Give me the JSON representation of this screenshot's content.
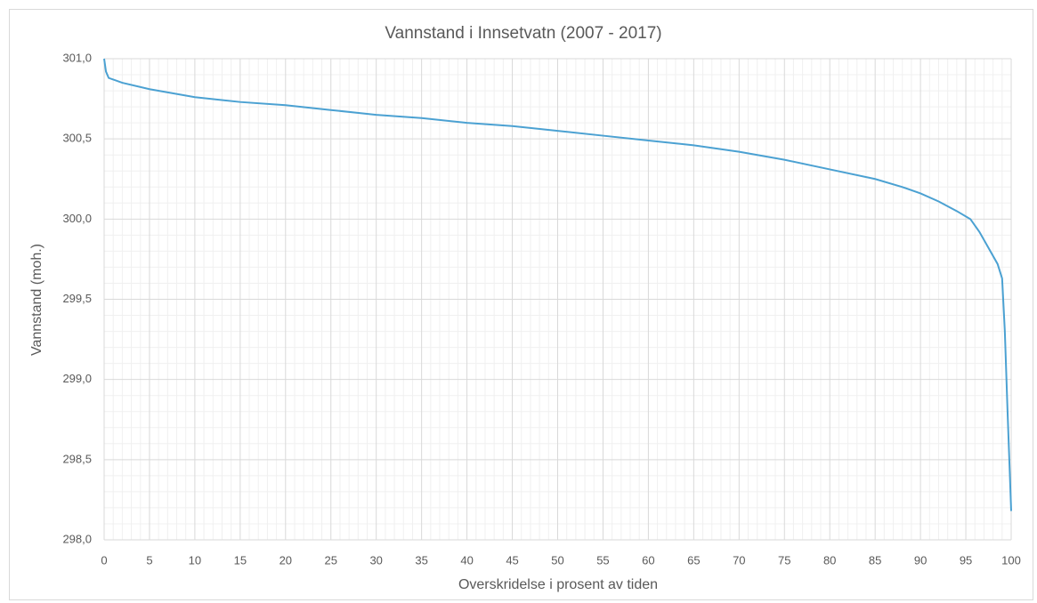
{
  "chart_data": {
    "type": "line",
    "title": "Vannstand i Innsetvatn (2007 - 2017)",
    "x_label": "Overskridelse i prosent av tiden",
    "y_label": "Vannstand (moh.)",
    "x": [
      0,
      0.2,
      0.5,
      1,
      2,
      5,
      10,
      15,
      20,
      25,
      30,
      35,
      40,
      45,
      50,
      55,
      60,
      65,
      70,
      75,
      80,
      85,
      88,
      90,
      92,
      94,
      95.5,
      96.5,
      97.5,
      98.5,
      99,
      99.3,
      99.6,
      100
    ],
    "series": [
      {
        "name": "Vannstand",
        "color": "#4ba1d2",
        "values": [
          301.0,
          300.92,
          300.88,
          300.87,
          300.85,
          300.81,
          300.76,
          300.73,
          300.71,
          300.68,
          300.65,
          300.63,
          300.6,
          300.58,
          300.55,
          300.52,
          300.49,
          300.46,
          300.42,
          300.37,
          300.31,
          300.25,
          300.2,
          300.16,
          300.11,
          300.05,
          300.0,
          299.92,
          299.82,
          299.72,
          299.63,
          299.3,
          298.8,
          298.18
        ]
      }
    ],
    "xlim": [
      0,
      100
    ],
    "xticks": [
      0,
      5,
      10,
      15,
      20,
      25,
      30,
      35,
      40,
      45,
      50,
      55,
      60,
      65,
      70,
      75,
      80,
      85,
      90,
      95,
      100
    ],
    "ylim": [
      298.0,
      301.0
    ],
    "yticks": [
      {
        "value": 298.0,
        "label": "298,0"
      },
      {
        "value": 298.5,
        "label": "298,5"
      },
      {
        "value": 299.0,
        "label": "299,0"
      },
      {
        "value": 299.5,
        "label": "299,5"
      },
      {
        "value": 300.0,
        "label": "300,0"
      },
      {
        "value": 300.5,
        "label": "300,5"
      },
      {
        "value": 301.0,
        "label": "301,0"
      }
    ],
    "grid": true,
    "minor_grid": true
  }
}
